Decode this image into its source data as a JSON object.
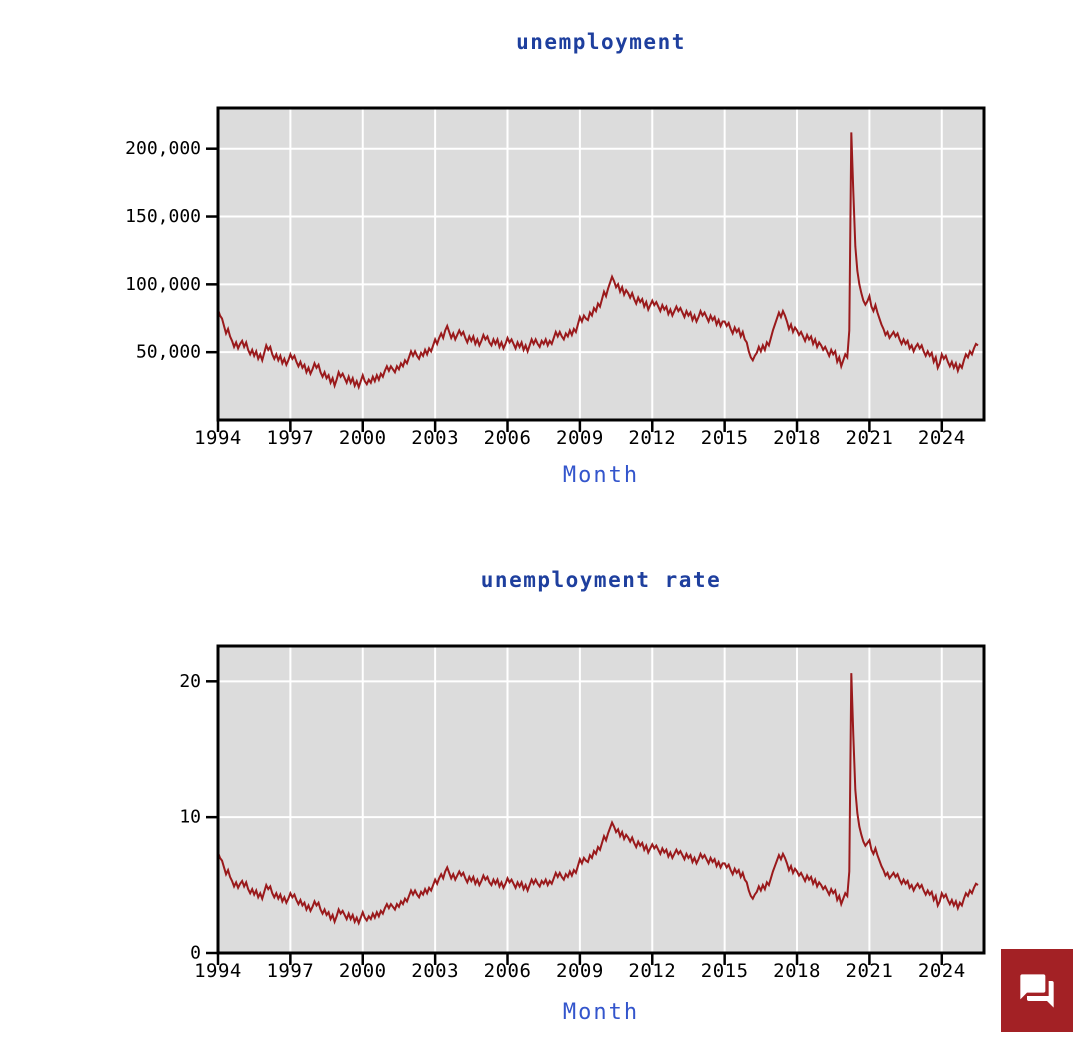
{
  "page": {
    "background": "#ffffff"
  },
  "colors": {
    "plot_background": "#dcdcdc",
    "grid": "#ffffff",
    "axis": "#000000",
    "tick_label": "#000000",
    "title": "#1e3f9e",
    "axis_title": "#3355cc",
    "line": "#9a1a1c",
    "chat_button": "#a32125",
    "chat_icon": "#ffffff"
  },
  "chat_button": {
    "icon": "chat-icon"
  },
  "chart_data": [
    {
      "type": "line",
      "title": "unemployment",
      "xlabel": "Month",
      "ylabel": "",
      "frequency": "monthly",
      "x_start": "1994-01",
      "x_end": "2025-07",
      "x_axis": {
        "min": 1994,
        "max": 2025.75,
        "ticks": [
          {
            "value": 1994,
            "label": "1994"
          },
          {
            "value": 1997,
            "label": "1997"
          },
          {
            "value": 2000,
            "label": "2000"
          },
          {
            "value": 2003,
            "label": "2003"
          },
          {
            "value": 2006,
            "label": "2006"
          },
          {
            "value": 2009,
            "label": "2009"
          },
          {
            "value": 2012,
            "label": "2012"
          },
          {
            "value": 2015,
            "label": "2015"
          },
          {
            "value": 2018,
            "label": "2018"
          },
          {
            "value": 2021,
            "label": "2021"
          },
          {
            "value": 2024,
            "label": "2024"
          }
        ]
      },
      "y_axis": {
        "min": 0,
        "max": 230000,
        "ticks": [
          {
            "value": 50000,
            "label": "50,000"
          },
          {
            "value": 100000,
            "label": "100,000"
          },
          {
            "value": 150000,
            "label": "150,000"
          },
          {
            "value": 200000,
            "label": "200,000"
          }
        ]
      },
      "grid": true,
      "values": [
        81400,
        77000,
        74800,
        69300,
        63800,
        67100,
        61600,
        58300,
        53900,
        57200,
        52800,
        56100,
        58300,
        53900,
        57200,
        51700,
        48400,
        51700,
        47300,
        50600,
        45100,
        48400,
        44000,
        49500,
        55000,
        51700,
        53900,
        48400,
        45100,
        48400,
        44000,
        47300,
        41800,
        45100,
        40700,
        44000,
        48400,
        45100,
        47300,
        42900,
        39600,
        42900,
        38500,
        40700,
        35200,
        38500,
        34100,
        37400,
        41800,
        38500,
        40700,
        35200,
        31900,
        35200,
        30800,
        33000,
        27500,
        30800,
        25300,
        29700,
        35200,
        31900,
        34100,
        30800,
        27500,
        31900,
        27500,
        30800,
        25300,
        28600,
        24200,
        28600,
        33000,
        28600,
        26400,
        29700,
        27500,
        31900,
        28600,
        33000,
        29700,
        34100,
        31900,
        36300,
        39600,
        36300,
        39600,
        37400,
        35200,
        39600,
        37400,
        41800,
        39600,
        44000,
        41800,
        46200,
        50600,
        47300,
        50600,
        47300,
        45100,
        49500,
        47300,
        51700,
        48400,
        52800,
        50600,
        55000,
        59400,
        56100,
        60500,
        63800,
        60500,
        66000,
        69300,
        64900,
        60500,
        63800,
        59400,
        62700,
        66000,
        62700,
        64900,
        60500,
        57200,
        61600,
        58300,
        61600,
        56100,
        59400,
        55000,
        58300,
        62700,
        59400,
        61600,
        57200,
        55000,
        59400,
        56100,
        59400,
        53900,
        57200,
        52800,
        56100,
        60500,
        57200,
        59400,
        56100,
        52800,
        57200,
        53900,
        57200,
        51700,
        55000,
        50600,
        55000,
        59400,
        56100,
        59400,
        56100,
        53900,
        58300,
        56100,
        59400,
        55000,
        58300,
        56100,
        60500,
        64900,
        61600,
        64900,
        61600,
        59400,
        63800,
        61600,
        66000,
        62700,
        67100,
        64900,
        70400,
        75900,
        72600,
        77000,
        74800,
        73700,
        79200,
        77000,
        82500,
        80300,
        85800,
        83600,
        89100,
        94600,
        91300,
        96800,
        101200,
        105600,
        102300,
        97900,
        100100,
        94600,
        97900,
        92400,
        95700,
        93500,
        90200,
        93500,
        89100,
        85800,
        90200,
        86900,
        89100,
        83600,
        86900,
        81400,
        84700,
        88000,
        84700,
        86900,
        83600,
        80300,
        84700,
        81400,
        83600,
        78100,
        81400,
        77000,
        80300,
        83600,
        80300,
        82500,
        79200,
        75900,
        80300,
        77000,
        79200,
        73700,
        77000,
        72600,
        75900,
        80300,
        77000,
        79200,
        75900,
        72600,
        77000,
        73700,
        75900,
        70400,
        73700,
        69300,
        72600,
        72600,
        69300,
        71500,
        67100,
        63800,
        68200,
        64900,
        67100,
        61600,
        64900,
        59400,
        57200,
        50600,
        46200,
        44000,
        47300,
        49500,
        53900,
        50600,
        55000,
        51700,
        57200,
        55000,
        60500,
        66000,
        70400,
        74800,
        79200,
        75900,
        80300,
        77000,
        72600,
        67100,
        70400,
        64900,
        68200,
        66000,
        62700,
        64900,
        61600,
        58300,
        62700,
        59400,
        61600,
        56100,
        59400,
        53900,
        57200,
        55000,
        51700,
        53900,
        50600,
        47300,
        51700,
        48400,
        50600,
        42900,
        46200,
        39600,
        44000,
        48400,
        46200,
        66000,
        212000,
        168000,
        128000,
        110000,
        100000,
        93500,
        88000,
        85000,
        87500,
        91300,
        83600,
        80300,
        84700,
        79200,
        74800,
        70400,
        67100,
        62700,
        64900,
        60500,
        62700,
        64900,
        61600,
        63800,
        59400,
        56100,
        59400,
        56100,
        58300,
        52800,
        55000,
        50600,
        53900,
        56100,
        52800,
        55000,
        50600,
        47300,
        50600,
        47300,
        49500,
        42900,
        46200,
        38500,
        41800,
        48400,
        45100,
        47300,
        42900,
        39600,
        42900,
        38500,
        41800,
        36300,
        40700,
        38500,
        44000,
        48400,
        46200,
        50600,
        48400,
        52800,
        56100,
        55000
      ]
    },
    {
      "type": "line",
      "title": "unemployment rate",
      "xlabel": "Month",
      "ylabel": "",
      "frequency": "monthly",
      "x_start": "1994-01",
      "x_end": "2025-07",
      "x_axis": {
        "min": 1994,
        "max": 2025.75,
        "ticks": [
          {
            "value": 1994,
            "label": "1994"
          },
          {
            "value": 1997,
            "label": "1997"
          },
          {
            "value": 2000,
            "label": "2000"
          },
          {
            "value": 2003,
            "label": "2003"
          },
          {
            "value": 2006,
            "label": "2006"
          },
          {
            "value": 2009,
            "label": "2009"
          },
          {
            "value": 2012,
            "label": "2012"
          },
          {
            "value": 2015,
            "label": "2015"
          },
          {
            "value": 2018,
            "label": "2018"
          },
          {
            "value": 2021,
            "label": "2021"
          },
          {
            "value": 2024,
            "label": "2024"
          }
        ]
      },
      "y_axis": {
        "min": 0,
        "max": 22.6,
        "ticks": [
          {
            "value": 0,
            "label": "0"
          },
          {
            "value": 10,
            "label": "10"
          },
          {
            "value": 20,
            "label": "20"
          }
        ]
      },
      "grid": true,
      "values": [
        7.4,
        7.0,
        6.8,
        6.3,
        5.8,
        6.1,
        5.6,
        5.3,
        4.9,
        5.2,
        4.8,
        5.1,
        5.3,
        4.9,
        5.2,
        4.7,
        4.4,
        4.7,
        4.3,
        4.6,
        4.1,
        4.4,
        4.0,
        4.5,
        5.0,
        4.7,
        4.9,
        4.4,
        4.1,
        4.4,
        4.0,
        4.3,
        3.8,
        4.1,
        3.7,
        4.0,
        4.4,
        4.1,
        4.3,
        3.9,
        3.6,
        3.9,
        3.5,
        3.7,
        3.2,
        3.5,
        3.1,
        3.4,
        3.8,
        3.5,
        3.7,
        3.2,
        2.9,
        3.2,
        2.8,
        3.0,
        2.5,
        2.8,
        2.3,
        2.7,
        3.2,
        2.9,
        3.1,
        2.8,
        2.5,
        2.9,
        2.5,
        2.8,
        2.3,
        2.6,
        2.2,
        2.6,
        3.0,
        2.6,
        2.4,
        2.7,
        2.5,
        2.9,
        2.6,
        3.0,
        2.7,
        3.1,
        2.9,
        3.3,
        3.6,
        3.3,
        3.6,
        3.4,
        3.2,
        3.6,
        3.4,
        3.8,
        3.6,
        4.0,
        3.8,
        4.2,
        4.6,
        4.3,
        4.6,
        4.3,
        4.1,
        4.5,
        4.3,
        4.7,
        4.4,
        4.8,
        4.6,
        5.0,
        5.4,
        5.1,
        5.5,
        5.8,
        5.5,
        6.0,
        6.3,
        5.9,
        5.5,
        5.8,
        5.4,
        5.7,
        6.0,
        5.7,
        5.9,
        5.5,
        5.2,
        5.6,
        5.3,
        5.6,
        5.1,
        5.4,
        5.0,
        5.3,
        5.7,
        5.4,
        5.6,
        5.2,
        5.0,
        5.4,
        5.1,
        5.4,
        4.9,
        5.2,
        4.8,
        5.1,
        5.5,
        5.2,
        5.4,
        5.1,
        4.8,
        5.2,
        4.9,
        5.2,
        4.7,
        5.0,
        4.6,
        5.0,
        5.4,
        5.1,
        5.4,
        5.1,
        4.9,
        5.3,
        5.1,
        5.4,
        5.0,
        5.3,
        5.1,
        5.5,
        5.9,
        5.6,
        5.9,
        5.6,
        5.4,
        5.8,
        5.6,
        6.0,
        5.7,
        6.1,
        5.9,
        6.4,
        6.9,
        6.6,
        7.0,
        6.8,
        6.7,
        7.2,
        7.0,
        7.5,
        7.3,
        7.8,
        7.6,
        8.1,
        8.6,
        8.3,
        8.8,
        9.2,
        9.6,
        9.3,
        8.9,
        9.1,
        8.6,
        8.9,
        8.4,
        8.7,
        8.5,
        8.2,
        8.5,
        8.1,
        7.8,
        8.2,
        7.9,
        8.1,
        7.6,
        7.9,
        7.4,
        7.7,
        8.0,
        7.7,
        7.9,
        7.6,
        7.3,
        7.7,
        7.4,
        7.6,
        7.1,
        7.4,
        7.0,
        7.3,
        7.6,
        7.3,
        7.5,
        7.2,
        6.9,
        7.3,
        7.0,
        7.2,
        6.7,
        7.0,
        6.6,
        6.9,
        7.3,
        7.0,
        7.2,
        6.9,
        6.6,
        7.0,
        6.7,
        6.9,
        6.4,
        6.7,
        6.3,
        6.6,
        6.6,
        6.3,
        6.5,
        6.1,
        5.8,
        6.2,
        5.9,
        6.1,
        5.6,
        5.9,
        5.4,
        5.2,
        4.6,
        4.2,
        4.0,
        4.3,
        4.5,
        4.9,
        4.6,
        5.0,
        4.7,
        5.2,
        5.0,
        5.5,
        6.0,
        6.4,
        6.8,
        7.2,
        6.9,
        7.3,
        7.0,
        6.6,
        6.1,
        6.4,
        5.9,
        6.2,
        6.0,
        5.7,
        5.9,
        5.6,
        5.3,
        5.7,
        5.4,
        5.6,
        5.1,
        5.4,
        4.9,
        5.2,
        5.0,
        4.7,
        4.9,
        4.6,
        4.3,
        4.7,
        4.4,
        4.6,
        3.9,
        4.2,
        3.6,
        4.0,
        4.4,
        4.2,
        6.0,
        20.6,
        16.0,
        12.0,
        10.3,
        9.3,
        8.7,
        8.2,
        7.9,
        8.1,
        8.3,
        7.6,
        7.3,
        7.7,
        7.2,
        6.8,
        6.4,
        6.1,
        5.7,
        5.9,
        5.5,
        5.7,
        5.9,
        5.6,
        5.8,
        5.4,
        5.1,
        5.4,
        5.1,
        5.3,
        4.8,
        5.0,
        4.6,
        4.9,
        5.1,
        4.8,
        5.0,
        4.6,
        4.3,
        4.6,
        4.3,
        4.5,
        3.9,
        4.2,
        3.5,
        3.8,
        4.4,
        4.1,
        4.3,
        3.9,
        3.6,
        3.9,
        3.5,
        3.8,
        3.3,
        3.7,
        3.5,
        4.0,
        4.4,
        4.2,
        4.6,
        4.4,
        4.8,
        5.1,
        5.0
      ]
    }
  ]
}
